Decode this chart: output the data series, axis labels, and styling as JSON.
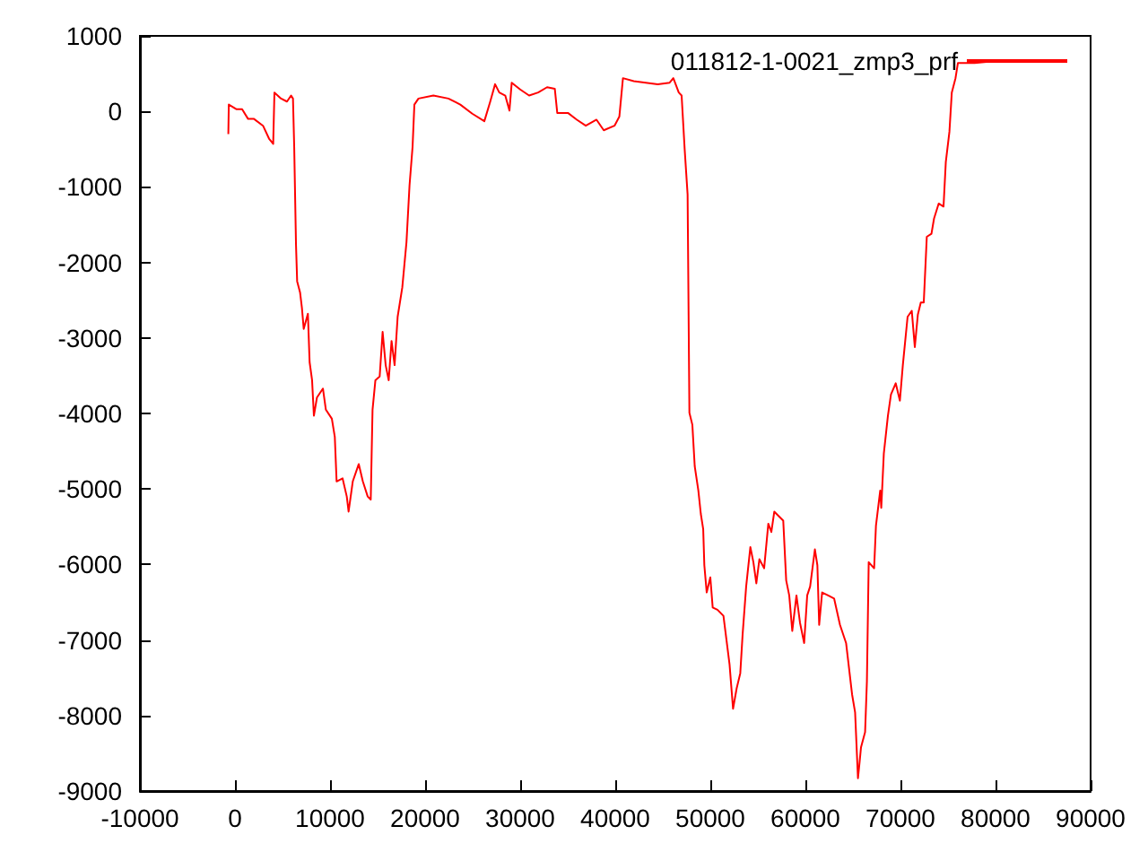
{
  "chart_data": {
    "type": "line",
    "legend": "top right",
    "marker": "none",
    "xlim": [
      -10000,
      90000
    ],
    "xticks": [
      -10000,
      0,
      10000,
      20000,
      30000,
      40000,
      50000,
      60000,
      70000,
      80000,
      90000
    ],
    "ylim": [
      -9000,
      1000
    ],
    "yticks": [
      -9000,
      -8000,
      -7000,
      -6000,
      -5000,
      -4000,
      -3000,
      -2000,
      -1000,
      0,
      1000
    ],
    "series": [
      {
        "name": "011812-1-0021_zmp3_prf",
        "color": "#ff0000",
        "x": [
          -700,
          -650,
          130,
          750,
          1380,
          2000,
          2950,
          3580,
          4020,
          4150,
          4850,
          5470,
          5900,
          6100,
          6230,
          6420,
          6540,
          6850,
          7040,
          7230,
          7670,
          7850,
          8110,
          8300,
          8620,
          9250,
          9560,
          10190,
          10500,
          10690,
          11320,
          11760,
          11950,
          12390,
          13020,
          13450,
          13960,
          14280,
          14470,
          14770,
          15220,
          15530,
          15850,
          16170,
          16470,
          16790,
          17110,
          17600,
          18040,
          18360,
          18680,
          18870,
          19300,
          20870,
          22450,
          23700,
          24960,
          26230,
          26850,
          27360,
          27800,
          28430,
          28870,
          29110,
          30000,
          30940,
          31890,
          32830,
          33640,
          33900,
          35020,
          35960,
          36900,
          38030,
          38790,
          39920,
          40430,
          40810,
          41950,
          43210,
          44470,
          45720,
          46110,
          46680,
          46980,
          47300,
          47610,
          47800,
          48110,
          48360,
          48740,
          49000,
          49250,
          49370,
          49620,
          50000,
          50250,
          50750,
          51380,
          51700,
          52020,
          52390,
          52770,
          53150,
          53400,
          53770,
          54210,
          54530,
          54840,
          55160,
          55660,
          56100,
          56420,
          56730,
          57360,
          57670,
          57980,
          58300,
          58620,
          59060,
          59430,
          59870,
          60190,
          60500,
          61000,
          61260,
          61450,
          61760,
          62390,
          63020,
          63640,
          64280,
          64910,
          65230,
          65530,
          65700,
          65850,
          66280,
          66470,
          66660,
          67230,
          67420,
          67870,
          67980,
          68250,
          68680,
          69000,
          69500,
          69940,
          70250,
          70750,
          71190,
          71510,
          71830,
          72140,
          72450,
          72770,
          73260,
          73530,
          74020,
          74530,
          74770,
          75150,
          75400,
          75790,
          76040,
          77800,
          80320,
          82830,
          86470
        ],
        "values": [
          -300,
          90,
          30,
          30,
          -100,
          -100,
          -190,
          -360,
          -430,
          250,
          170,
          130,
          210,
          170,
          -470,
          -1770,
          -2250,
          -2400,
          -2600,
          -2880,
          -2680,
          -3320,
          -3560,
          -4030,
          -3790,
          -3670,
          -3950,
          -4070,
          -4310,
          -4900,
          -4860,
          -5100,
          -5300,
          -4900,
          -4670,
          -4900,
          -5100,
          -5140,
          -3950,
          -3560,
          -3510,
          -2920,
          -3360,
          -3560,
          -3040,
          -3360,
          -2720,
          -2330,
          -1730,
          -980,
          -470,
          90,
          170,
          210,
          170,
          90,
          -30,
          -130,
          130,
          360,
          250,
          210,
          10,
          380,
          290,
          210,
          250,
          320,
          300,
          -20,
          -20,
          -110,
          -190,
          -110,
          -250,
          -190,
          -70,
          440,
          400,
          380,
          360,
          380,
          440,
          250,
          210,
          -500,
          -1100,
          -3990,
          -4150,
          -4700,
          -5020,
          -5330,
          -5530,
          -6010,
          -6370,
          -6170,
          -6570,
          -6600,
          -6680,
          -7000,
          -7320,
          -7910,
          -7640,
          -7440,
          -6920,
          -6290,
          -5770,
          -5970,
          -6250,
          -5930,
          -6050,
          -5460,
          -5570,
          -5300,
          -5380,
          -5420,
          -6210,
          -6410,
          -6880,
          -6410,
          -6770,
          -7040,
          -6410,
          -6290,
          -5800,
          -6010,
          -6800,
          -6370,
          -6410,
          -6450,
          -6800,
          -7040,
          -7720,
          -7960,
          -8830,
          -8620,
          -8420,
          -8220,
          -7550,
          -5970,
          -6050,
          -5490,
          -5020,
          -5250,
          -4530,
          -4030,
          -3750,
          -3600,
          -3830,
          -3360,
          -2720,
          -2640,
          -3120,
          -2690,
          -2530,
          -2530,
          -1660,
          -1620,
          -1420,
          -1220,
          -1260,
          -670,
          -270,
          250,
          440,
          640,
          640,
          670,
          680,
          680
        ]
      }
    ]
  }
}
